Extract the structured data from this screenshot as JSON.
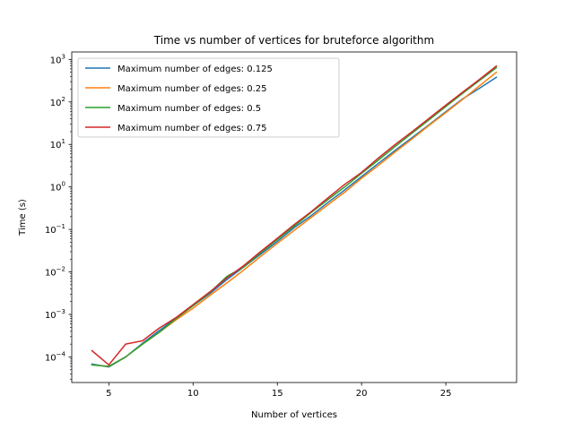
{
  "chart_data": {
    "type": "line",
    "title": "Time vs number of vertices for bruteforce algorithm",
    "xlabel": "Number of vertices",
    "ylabel": "Time (s)",
    "yscale": "log",
    "xlim": [
      2.8,
      29.2
    ],
    "ylim": [
      2.5e-05,
      1500
    ],
    "xticks": [
      5,
      10,
      15,
      20,
      25
    ],
    "yticks": [
      {
        "value": 0.0001,
        "base": "10",
        "exp": "−4"
      },
      {
        "value": 0.001,
        "base": "10",
        "exp": "−3"
      },
      {
        "value": 0.01,
        "base": "10",
        "exp": "−2"
      },
      {
        "value": 0.1,
        "base": "10",
        "exp": "−1"
      },
      {
        "value": 1,
        "base": "10",
        "exp": "0"
      },
      {
        "value": 10,
        "base": "10",
        "exp": "1"
      },
      {
        "value": 100,
        "base": "10",
        "exp": "2"
      },
      {
        "value": 1000,
        "base": "10",
        "exp": "3"
      }
    ],
    "grid": false,
    "legend_position": "top-left",
    "x": [
      4,
      5,
      6,
      7,
      8,
      9,
      10,
      11,
      12,
      13,
      14,
      15,
      16,
      17,
      18,
      19,
      20,
      21,
      22,
      23,
      24,
      25,
      26,
      27,
      28
    ],
    "series": [
      {
        "name": "Maximum number of edges: 0.125",
        "color": "#1f77b4",
        "values": [
          6.8e-05,
          5.8e-05,
          0.0001,
          0.00021,
          0.00042,
          0.00082,
          0.0016,
          0.0031,
          0.0066,
          0.013,
          0.026,
          0.052,
          0.11,
          0.21,
          0.43,
          0.85,
          1.75,
          3.6,
          7.3,
          14.5,
          29,
          59,
          118,
          210,
          380
        ]
      },
      {
        "name": "Maximum number of edges: 0.25",
        "color": "#ff7f0e",
        "values": [
          6.5e-05,
          6e-05,
          0.0001,
          0.0002,
          0.00038,
          0.00075,
          0.0014,
          0.0028,
          0.0055,
          0.011,
          0.023,
          0.047,
          0.095,
          0.19,
          0.38,
          0.75,
          1.6,
          3.2,
          6.7,
          13.5,
          28,
          56,
          115,
          240,
          500
        ]
      },
      {
        "name": "Maximum number of edges: 0.5",
        "color": "#2ca02c",
        "values": [
          6.5e-05,
          6e-05,
          0.0001,
          0.0002,
          0.00038,
          0.0008,
          0.0016,
          0.0033,
          0.0078,
          0.013,
          0.028,
          0.058,
          0.12,
          0.25,
          0.5,
          1.0,
          2.1,
          4.3,
          9.0,
          18.5,
          38,
          78,
          160,
          320,
          640
        ]
      },
      {
        "name": "Maximum number of edges: 0.75",
        "color": "#d62728",
        "values": [
          0.00014,
          6.5e-05,
          0.0002,
          0.00024,
          0.00048,
          0.00085,
          0.0017,
          0.0034,
          0.0072,
          0.014,
          0.03,
          0.062,
          0.13,
          0.26,
          0.55,
          1.15,
          2.2,
          4.8,
          10,
          20,
          41,
          84,
          170,
          340,
          700
        ]
      }
    ]
  }
}
